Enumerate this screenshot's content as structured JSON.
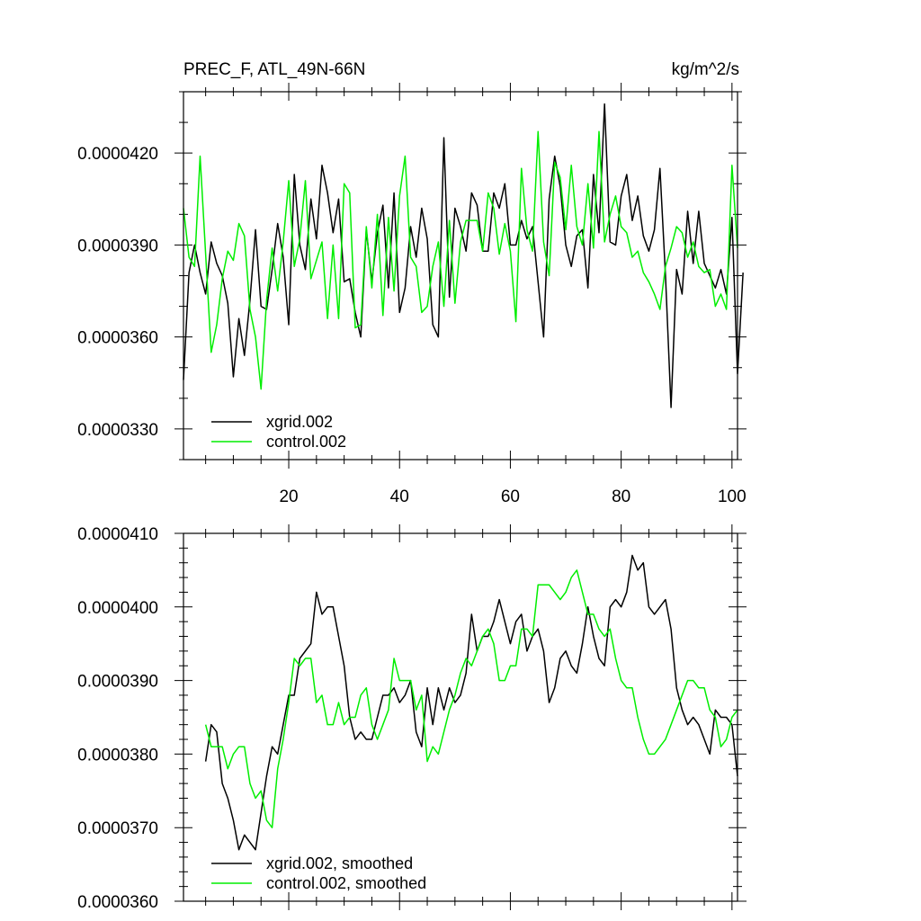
{
  "chart_data": [
    {
      "type": "line",
      "title": "PREC_F, ATL_49N-66N",
      "units": "kg/m^2/s",
      "xlim": [
        1,
        101
      ],
      "ylim": [
        3.2e-05,
        4.4e-05
      ],
      "x_ticks": [
        20,
        40,
        60,
        80,
        100
      ],
      "x_tick_labels": [
        "20",
        "40",
        "60",
        "80",
        "100"
      ],
      "y_ticks": [
        3.3e-05,
        3.6e-05,
        3.9e-05,
        4.2e-05
      ],
      "y_tick_labels": [
        "0.0000330",
        "0.0000360",
        "0.0000390",
        "0.0000420"
      ],
      "legend_position": "bottom-left",
      "series": [
        {
          "name": "xgrid.002",
          "color": "#000000",
          "x_start": 1,
          "values": [
            3.46e-05,
            3.81e-05,
            3.9e-05,
            3.81e-05,
            3.74e-05,
            3.91e-05,
            3.84e-05,
            3.8e-05,
            3.71e-05,
            3.47e-05,
            3.66e-05,
            3.54e-05,
            3.72e-05,
            3.95e-05,
            3.7e-05,
            3.69e-05,
            3.82e-05,
            3.97e-05,
            3.86e-05,
            3.64e-05,
            4.13e-05,
            3.9e-05,
            3.82e-05,
            4.05e-05,
            3.92e-05,
            4.16e-05,
            4.07e-05,
            3.94e-05,
            4.05e-05,
            3.78e-05,
            3.79e-05,
            3.68e-05,
            3.6e-05,
            3.95e-05,
            3.78e-05,
            3.94e-05,
            4.03e-05,
            3.76e-05,
            4.07e-05,
            3.68e-05,
            3.76e-05,
            3.96e-05,
            3.86e-05,
            4.02e-05,
            3.92e-05,
            3.64e-05,
            3.6e-05,
            4.25e-05,
            3.73e-05,
            4.02e-05,
            3.96e-05,
            3.88e-05,
            4.07e-05,
            4.03e-05,
            3.88e-05,
            3.88e-05,
            4.07e-05,
            4.02e-05,
            4.1e-05,
            3.9e-05,
            3.9e-05,
            3.98e-05,
            3.92e-05,
            3.96e-05,
            3.78e-05,
            3.6e-05,
            4.05e-05,
            4.19e-05,
            4.09e-05,
            3.9e-05,
            3.83e-05,
            3.93e-05,
            3.95e-05,
            3.76e-05,
            4.13e-05,
            3.94e-05,
            4.36e-05,
            3.91e-05,
            3.9e-05,
            4.06e-05,
            4.13e-05,
            3.98e-05,
            4.06e-05,
            3.93e-05,
            3.88e-05,
            3.95e-05,
            4.15e-05,
            3.8e-05,
            3.37e-05,
            3.82e-05,
            3.74e-05,
            4.01e-05,
            3.84e-05,
            4.01e-05,
            3.84e-05,
            3.8e-05,
            3.76e-05,
            3.82e-05,
            3.74e-05,
            3.99e-05,
            3.48e-05,
            3.81e-05
          ]
        },
        {
          "name": "control.002",
          "color": "#00ee00",
          "x_start": 1,
          "values": [
            4.02e-05,
            3.86e-05,
            3.83e-05,
            4.19e-05,
            3.87e-05,
            3.55e-05,
            3.64e-05,
            3.79e-05,
            3.88e-05,
            3.85e-05,
            3.97e-05,
            3.93e-05,
            3.69e-05,
            3.6e-05,
            3.43e-05,
            3.72e-05,
            3.89e-05,
            3.75e-05,
            3.91e-05,
            4.11e-05,
            3.83e-05,
            3.92e-05,
            4.11e-05,
            3.79e-05,
            3.85e-05,
            3.91e-05,
            3.66e-05,
            3.9e-05,
            3.66e-05,
            4.1e-05,
            4.07e-05,
            3.63e-05,
            3.64e-05,
            3.96e-05,
            3.76e-05,
            4e-05,
            3.67e-05,
            3.99e-05,
            3.75e-05,
            4.06e-05,
            4.19e-05,
            3.86e-05,
            3.83e-05,
            3.68e-05,
            3.7e-05,
            3.83e-05,
            3.91e-05,
            3.7e-05,
            3.98e-05,
            3.71e-05,
            3.91e-05,
            3.98e-05,
            3.98e-05,
            3.98e-05,
            3.88e-05,
            4.07e-05,
            4.02e-05,
            3.87e-05,
            3.97e-05,
            3.88e-05,
            3.65e-05,
            4.15e-05,
            3.95e-05,
            3.88e-05,
            4.27e-05,
            3.91e-05,
            3.8e-05,
            4.17e-05,
            4.12e-05,
            3.95e-05,
            4.16e-05,
            3.96e-05,
            3.9e-05,
            4.1e-05,
            3.89e-05,
            4.27e-05,
            3.91e-05,
            4e-05,
            4.06e-05,
            3.96e-05,
            3.94e-05,
            3.86e-05,
            3.88e-05,
            3.81e-05,
            3.78e-05,
            3.74e-05,
            3.69e-05,
            3.83e-05,
            3.89e-05,
            3.96e-05,
            3.94e-05,
            3.86e-05,
            3.91e-05,
            3.83e-05,
            3.81e-05,
            3.82e-05,
            3.7e-05,
            3.74e-05,
            3.69e-05,
            4.16e-05,
            3.89e-05
          ]
        }
      ]
    },
    {
      "type": "line",
      "title": "",
      "xlim": [
        1,
        101
      ],
      "ylim": [
        3.6e-05,
        4.1e-05
      ],
      "x_ticks": [
        20,
        40,
        60,
        80,
        100
      ],
      "x_tick_labels": [],
      "y_ticks": [
        3.6e-05,
        3.7e-05,
        3.8e-05,
        3.9e-05,
        4e-05,
        4.1e-05
      ],
      "y_tick_labels": [
        "0.0000360",
        "0.0000370",
        "0.0000380",
        "0.0000390",
        "0.0000400",
        "0.0000410"
      ],
      "legend_position": "bottom-left",
      "series": [
        {
          "name": "xgrid.002, smoothed",
          "color": "#000000",
          "x_start": 5,
          "values": [
            3.79e-05,
            3.84e-05,
            3.83e-05,
            3.76e-05,
            3.74e-05,
            3.71e-05,
            3.67e-05,
            3.69e-05,
            3.68e-05,
            3.67e-05,
            3.72e-05,
            3.77e-05,
            3.81e-05,
            3.8e-05,
            3.84e-05,
            3.88e-05,
            3.88e-05,
            3.93e-05,
            3.94e-05,
            3.95e-05,
            4.02e-05,
            3.99e-05,
            4e-05,
            4e-05,
            3.96e-05,
            3.92e-05,
            3.85e-05,
            3.82e-05,
            3.83e-05,
            3.82e-05,
            3.82e-05,
            3.85e-05,
            3.88e-05,
            3.88e-05,
            3.89e-05,
            3.87e-05,
            3.88e-05,
            3.9e-05,
            3.83e-05,
            3.81e-05,
            3.89e-05,
            3.84e-05,
            3.89e-05,
            3.86e-05,
            3.89e-05,
            3.87e-05,
            3.88e-05,
            3.91e-05,
            3.99e-05,
            3.94e-05,
            3.96e-05,
            3.96e-05,
            3.98e-05,
            4.01e-05,
            3.98e-05,
            3.95e-05,
            3.98e-05,
            3.99e-05,
            3.94e-05,
            3.96e-05,
            3.97e-05,
            3.94e-05,
            3.87e-05,
            3.89e-05,
            3.93e-05,
            3.94e-05,
            3.92e-05,
            3.91e-05,
            3.95e-05,
            4e-05,
            3.96e-05,
            3.93e-05,
            3.92e-05,
            4e-05,
            4.01e-05,
            4e-05,
            4.02e-05,
            4.07e-05,
            4.05e-05,
            4.06e-05,
            4e-05,
            3.99e-05,
            4e-05,
            4.01e-05,
            3.97e-05,
            3.89e-05,
            3.86e-05,
            3.84e-05,
            3.85e-05,
            3.84e-05,
            3.82e-05,
            3.8e-05,
            3.86e-05,
            3.85e-05,
            3.85e-05,
            3.84e-05,
            3.77e-05
          ]
        },
        {
          "name": "control.002, smoothed",
          "color": "#00ee00",
          "x_start": 5,
          "values": [
            3.84e-05,
            3.81e-05,
            3.81e-05,
            3.81e-05,
            3.78e-05,
            3.8e-05,
            3.81e-05,
            3.81e-05,
            3.76e-05,
            3.74e-05,
            3.75e-05,
            3.71e-05,
            3.7e-05,
            3.78e-05,
            3.82e-05,
            3.87e-05,
            3.93e-05,
            3.92e-05,
            3.93e-05,
            3.93e-05,
            3.87e-05,
            3.88e-05,
            3.84e-05,
            3.84e-05,
            3.87e-05,
            3.84e-05,
            3.85e-05,
            3.85e-05,
            3.88e-05,
            3.89e-05,
            3.84e-05,
            3.82e-05,
            3.84e-05,
            3.86e-05,
            3.93e-05,
            3.9e-05,
            3.9e-05,
            3.9e-05,
            3.86e-05,
            3.88e-05,
            3.79e-05,
            3.81e-05,
            3.8e-05,
            3.83e-05,
            3.86e-05,
            3.88e-05,
            3.91e-05,
            3.93e-05,
            3.92e-05,
            3.94e-05,
            3.96e-05,
            3.97e-05,
            3.95e-05,
            3.9e-05,
            3.9e-05,
            3.92e-05,
            3.92e-05,
            3.97e-05,
            3.97e-05,
            3.96e-05,
            4.03e-05,
            4.03e-05,
            4.03e-05,
            4.02e-05,
            4.01e-05,
            4.02e-05,
            4.04e-05,
            4.05e-05,
            4.02e-05,
            3.99e-05,
            3.99e-05,
            3.97e-05,
            3.96e-05,
            3.97e-05,
            3.93e-05,
            3.9e-05,
            3.89e-05,
            3.89e-05,
            3.85e-05,
            3.82e-05,
            3.8e-05,
            3.8e-05,
            3.81e-05,
            3.82e-05,
            3.84e-05,
            3.86e-05,
            3.88e-05,
            3.9e-05,
            3.9e-05,
            3.89e-05,
            3.89e-05,
            3.86e-05,
            3.85e-05,
            3.81e-05,
            3.82e-05,
            3.85e-05,
            3.86e-05
          ]
        }
      ]
    }
  ]
}
